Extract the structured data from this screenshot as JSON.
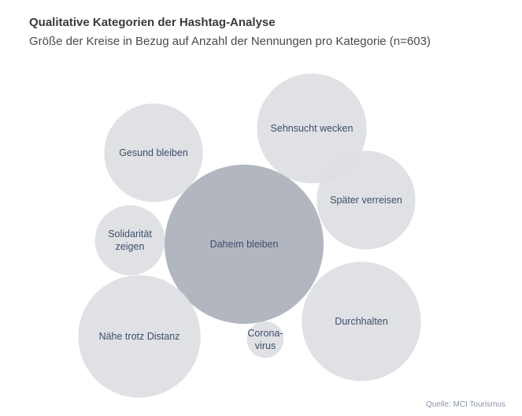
{
  "chart_data": {
    "type": "bubble",
    "title": "Qualitative Kategorien der Hashtag-Analyse",
    "subtitle": "Größe der Kreise in Bezug auf Anzahl der Nennungen pro Kategorie (n=603)",
    "source": "Quelle: MCI Tourismus",
    "colors": {
      "light": "#dcdee3",
      "dark": "#b2b6bf",
      "label": "#3e4d6b"
    },
    "bubbles": [
      {
        "label": [
          "Sehnsucht wecken"
        ],
        "relative_size": 0.69
      },
      {
        "label": [
          "Gesund bleiben"
        ],
        "relative_size": 0.62
      },
      {
        "label": [
          "Später verreisen"
        ],
        "relative_size": 0.62
      },
      {
        "label": [
          "Solidarität",
          "zeigen"
        ],
        "relative_size": 0.44
      },
      {
        "label": [
          "Daheim bleiben"
        ],
        "relative_size": 1.0
      },
      {
        "label": [
          "Durchhalten"
        ],
        "relative_size": 0.75
      },
      {
        "label": [
          "Nähe trotz Distanz"
        ],
        "relative_size": 0.77
      },
      {
        "label": [
          "Corona-",
          "virus"
        ],
        "relative_size": 0.23
      }
    ]
  }
}
